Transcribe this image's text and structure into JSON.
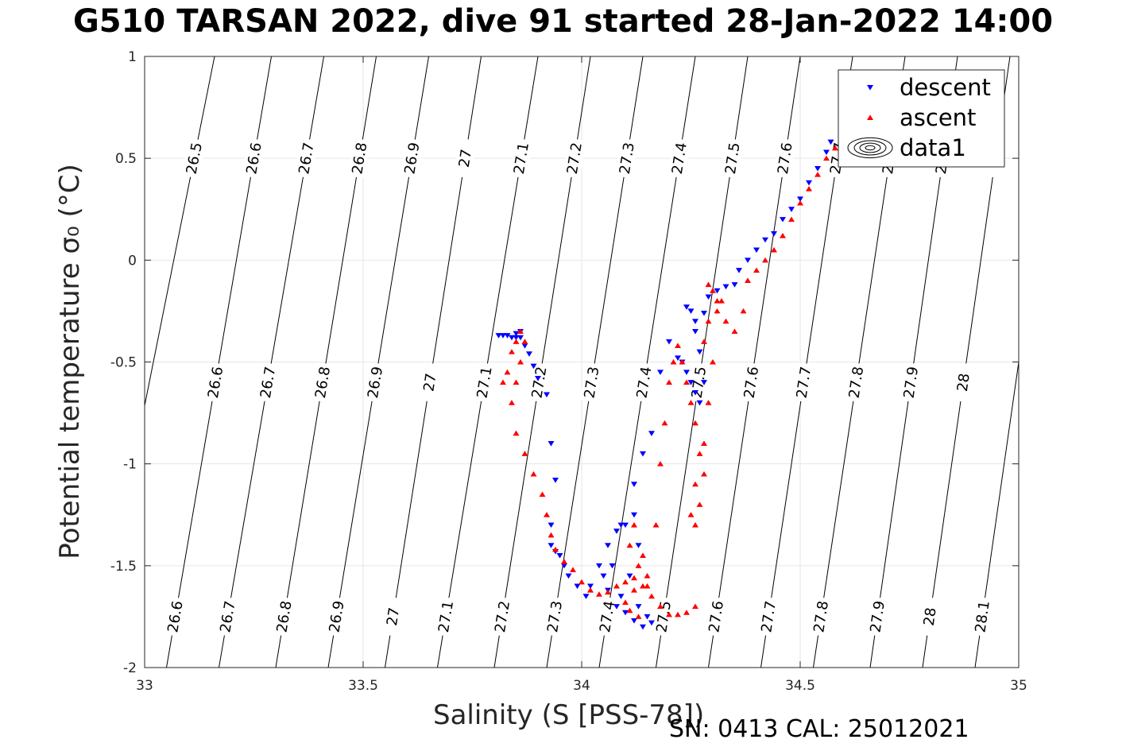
{
  "chart_data": {
    "type": "scatter",
    "title": "G510 TARSAN 2022, dive 91 started 28-Jan-2022 14:00",
    "xlabel": "Salinity (S [PSS-78])",
    "ylabel": "Potential temperature σ₀ (°C)",
    "footer": "SN: 0413  CAL: 25012021",
    "xlim": [
      33,
      35
    ],
    "ylim": [
      -2,
      1
    ],
    "xticks": [
      "33",
      "33.5",
      "34",
      "34.5",
      "35"
    ],
    "yticks": [
      "-2",
      "-1.5",
      "-1",
      "-0.5",
      "0",
      "0.5",
      "1"
    ],
    "grid": true,
    "legend_position": "top-right",
    "legend": [
      "descent",
      "ascent",
      "data1"
    ],
    "colors": {
      "descent": "#0000ff",
      "ascent": "#ff0000",
      "contour": "#000000",
      "grid": "#e6e6e6"
    },
    "density_contours": {
      "levels": [
        26.5,
        26.6,
        26.7,
        26.8,
        26.9,
        27,
        27.1,
        27.2,
        27.3,
        27.4,
        27.5,
        27.6,
        27.7,
        27.8,
        27.9,
        28,
        28.1
      ],
      "lines": [
        {
          "level": 26.5,
          "s_at_tmin": 32.88,
          "s_at_tmax": 33.16
        },
        {
          "level": 26.6,
          "s_at_tmin": 33.05,
          "s_at_tmax": 33.29
        },
        {
          "level": 26.7,
          "s_at_tmin": 33.17,
          "s_at_tmax": 33.41
        },
        {
          "level": 26.8,
          "s_at_tmin": 33.3,
          "s_at_tmax": 33.53
        },
        {
          "level": 26.9,
          "s_at_tmin": 33.42,
          "s_at_tmax": 33.65
        },
        {
          "level": 27,
          "s_at_tmin": 33.55,
          "s_at_tmax": 33.77
        },
        {
          "level": 27.1,
          "s_at_tmin": 33.67,
          "s_at_tmax": 33.9
        },
        {
          "level": 27.2,
          "s_at_tmin": 33.8,
          "s_at_tmax": 34.02
        },
        {
          "level": 27.3,
          "s_at_tmin": 33.92,
          "s_at_tmax": 34.14
        },
        {
          "level": 27.4,
          "s_at_tmin": 34.04,
          "s_at_tmax": 34.26
        },
        {
          "level": 27.5,
          "s_at_tmin": 34.17,
          "s_at_tmax": 34.38
        },
        {
          "level": 27.6,
          "s_at_tmin": 34.29,
          "s_at_tmax": 34.5
        },
        {
          "level": 27.7,
          "s_at_tmin": 34.41,
          "s_at_tmax": 34.62
        },
        {
          "level": 27.8,
          "s_at_tmin": 34.53,
          "s_at_tmax": 34.74
        },
        {
          "level": 27.9,
          "s_at_tmin": 34.66,
          "s_at_tmax": 34.86
        },
        {
          "level": 28,
          "s_at_tmin": 34.78,
          "s_at_tmax": 34.98
        },
        {
          "level": 28.1,
          "s_at_tmin": 34.9,
          "s_at_tmax": 35.1
        }
      ],
      "label_rows_t": [
        0.5,
        -0.6,
        -1.75
      ]
    },
    "series": [
      {
        "name": "descent",
        "marker": "triangle-down",
        "x": [
          33.81,
          33.82,
          33.83,
          33.84,
          33.85,
          33.85,
          33.86,
          33.86,
          33.87,
          33.88,
          33.89,
          33.9,
          33.92,
          33.93,
          33.94,
          33.93,
          33.93,
          33.94,
          33.95,
          33.96,
          33.97,
          33.99,
          34.01,
          34.02,
          34.04,
          34.06,
          34.08,
          34.1,
          34.12,
          34.13,
          34.11,
          34.09,
          34.13,
          34.15,
          34.16,
          34.14,
          34.12,
          34.1,
          34.08,
          34.06,
          34.05,
          34.07,
          34.09,
          34.12,
          34.14,
          34.16,
          34.18,
          34.2,
          34.22,
          34.23,
          34.24,
          34.25,
          34.26,
          34.27,
          34.28,
          34.27,
          34.26,
          34.25,
          34.24,
          34.26,
          34.28,
          34.29,
          34.31,
          34.33,
          34.35,
          34.36,
          34.38,
          34.4,
          34.42,
          34.44,
          34.46,
          34.48,
          34.5,
          34.52,
          34.54,
          34.56,
          34.57
        ],
        "y": [
          -0.37,
          -0.37,
          -0.37,
          -0.38,
          -0.38,
          -0.36,
          -0.35,
          -0.38,
          -0.42,
          -0.46,
          -0.52,
          -0.58,
          -0.66,
          -0.9,
          -1.08,
          -1.3,
          -1.4,
          -1.43,
          -1.45,
          -1.5,
          -1.55,
          -1.6,
          -1.65,
          -1.6,
          -1.5,
          -1.4,
          -1.33,
          -1.3,
          -1.25,
          -1.4,
          -1.55,
          -1.65,
          -1.7,
          -1.75,
          -1.78,
          -1.8,
          -1.77,
          -1.73,
          -1.7,
          -1.62,
          -1.55,
          -1.5,
          -1.3,
          -1.1,
          -0.95,
          -0.85,
          -0.55,
          -0.4,
          -0.48,
          -0.5,
          -0.55,
          -0.6,
          -0.65,
          -0.7,
          -0.6,
          -0.45,
          -0.35,
          -0.25,
          -0.23,
          -0.3,
          -0.26,
          -0.18,
          -0.15,
          -0.13,
          -0.12,
          -0.05,
          0.0,
          0.05,
          0.1,
          0.13,
          0.2,
          0.25,
          0.3,
          0.38,
          0.45,
          0.53,
          0.58
        ]
      },
      {
        "name": "ascent",
        "marker": "triangle-up",
        "x": [
          33.82,
          33.83,
          33.84,
          33.85,
          33.86,
          33.87,
          33.86,
          33.85,
          33.84,
          33.85,
          33.87,
          33.89,
          33.91,
          33.92,
          33.93,
          33.94,
          33.96,
          33.98,
          34.0,
          34.02,
          34.04,
          34.06,
          34.08,
          34.1,
          34.12,
          34.14,
          34.16,
          34.18,
          34.2,
          34.22,
          34.24,
          34.26,
          34.14,
          34.12,
          34.11,
          34.13,
          34.15,
          34.12,
          34.1,
          34.11,
          34.13,
          34.15,
          34.17,
          34.18,
          34.19,
          34.2,
          34.21,
          34.22,
          34.23,
          34.24,
          34.25,
          34.26,
          34.27,
          34.28,
          34.27,
          34.26,
          34.25,
          34.26,
          34.28,
          34.29,
          34.3,
          34.28,
          34.29,
          34.31,
          34.32,
          34.3,
          34.29,
          34.31,
          34.33,
          34.35,
          34.37,
          34.38,
          34.4,
          34.42,
          34.44,
          34.46,
          34.48,
          34.5,
          34.52,
          34.54,
          34.56,
          34.58
        ],
        "y": [
          -0.6,
          -0.55,
          -0.45,
          -0.4,
          -0.35,
          -0.4,
          -0.5,
          -0.6,
          -0.7,
          -0.85,
          -0.95,
          -1.05,
          -1.15,
          -1.25,
          -1.35,
          -1.42,
          -1.48,
          -1.52,
          -1.58,
          -1.62,
          -1.64,
          -1.63,
          -1.6,
          -1.58,
          -1.56,
          -1.6,
          -1.65,
          -1.7,
          -1.74,
          -1.74,
          -1.73,
          -1.7,
          -1.45,
          -1.3,
          -1.4,
          -1.5,
          -1.55,
          -1.62,
          -1.68,
          -1.72,
          -1.75,
          -1.6,
          -1.3,
          -1.0,
          -0.8,
          -0.6,
          -0.5,
          -0.42,
          -0.5,
          -0.6,
          -0.7,
          -0.8,
          -0.95,
          -1.05,
          -1.2,
          -1.3,
          -1.25,
          -1.1,
          -0.9,
          -0.7,
          -0.5,
          -0.4,
          -0.3,
          -0.25,
          -0.2,
          -0.15,
          -0.12,
          -0.2,
          -0.3,
          -0.35,
          -0.25,
          -0.1,
          -0.05,
          0.0,
          0.05,
          0.12,
          0.2,
          0.28,
          0.35,
          0.42,
          0.5,
          0.55
        ]
      }
    ]
  }
}
